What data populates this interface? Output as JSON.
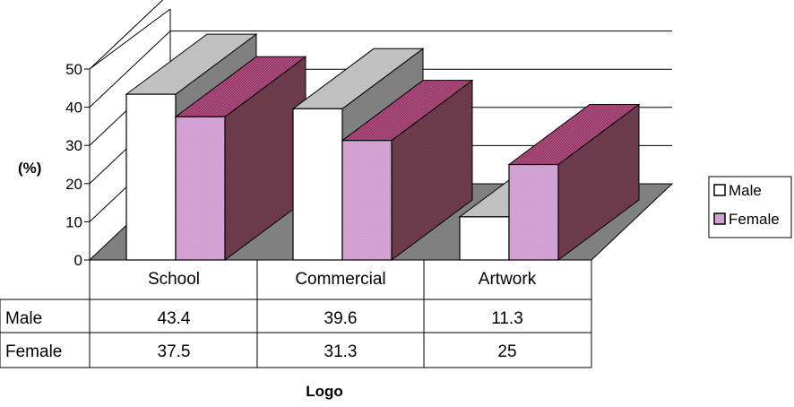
{
  "chart_data": {
    "type": "bar",
    "style": "3d-clustered-column-with-data-table",
    "categories": [
      "School",
      "Commercial",
      "Artwork"
    ],
    "series": [
      {
        "name": "Male",
        "values": [
          43.4,
          39.6,
          11.3
        ],
        "color": "#ffffff"
      },
      {
        "name": "Female",
        "values": [
          37.5,
          31.3,
          25
        ],
        "color": "#cc99cc"
      }
    ],
    "xlabel": "Logo",
    "ylabel": "(%)",
    "ylim": [
      0,
      50
    ],
    "yticks": [
      "0",
      "10",
      "20",
      "30",
      "40",
      "50"
    ],
    "grid": true,
    "legend": "right",
    "data_table": true,
    "colors": {
      "male_front": "#ffffff",
      "male_top": "#c0c0c0",
      "male_side": "#808080",
      "female_front": "#cc99cc",
      "female_top": "#993366",
      "female_side": "#663344",
      "floor": "#808080"
    }
  }
}
